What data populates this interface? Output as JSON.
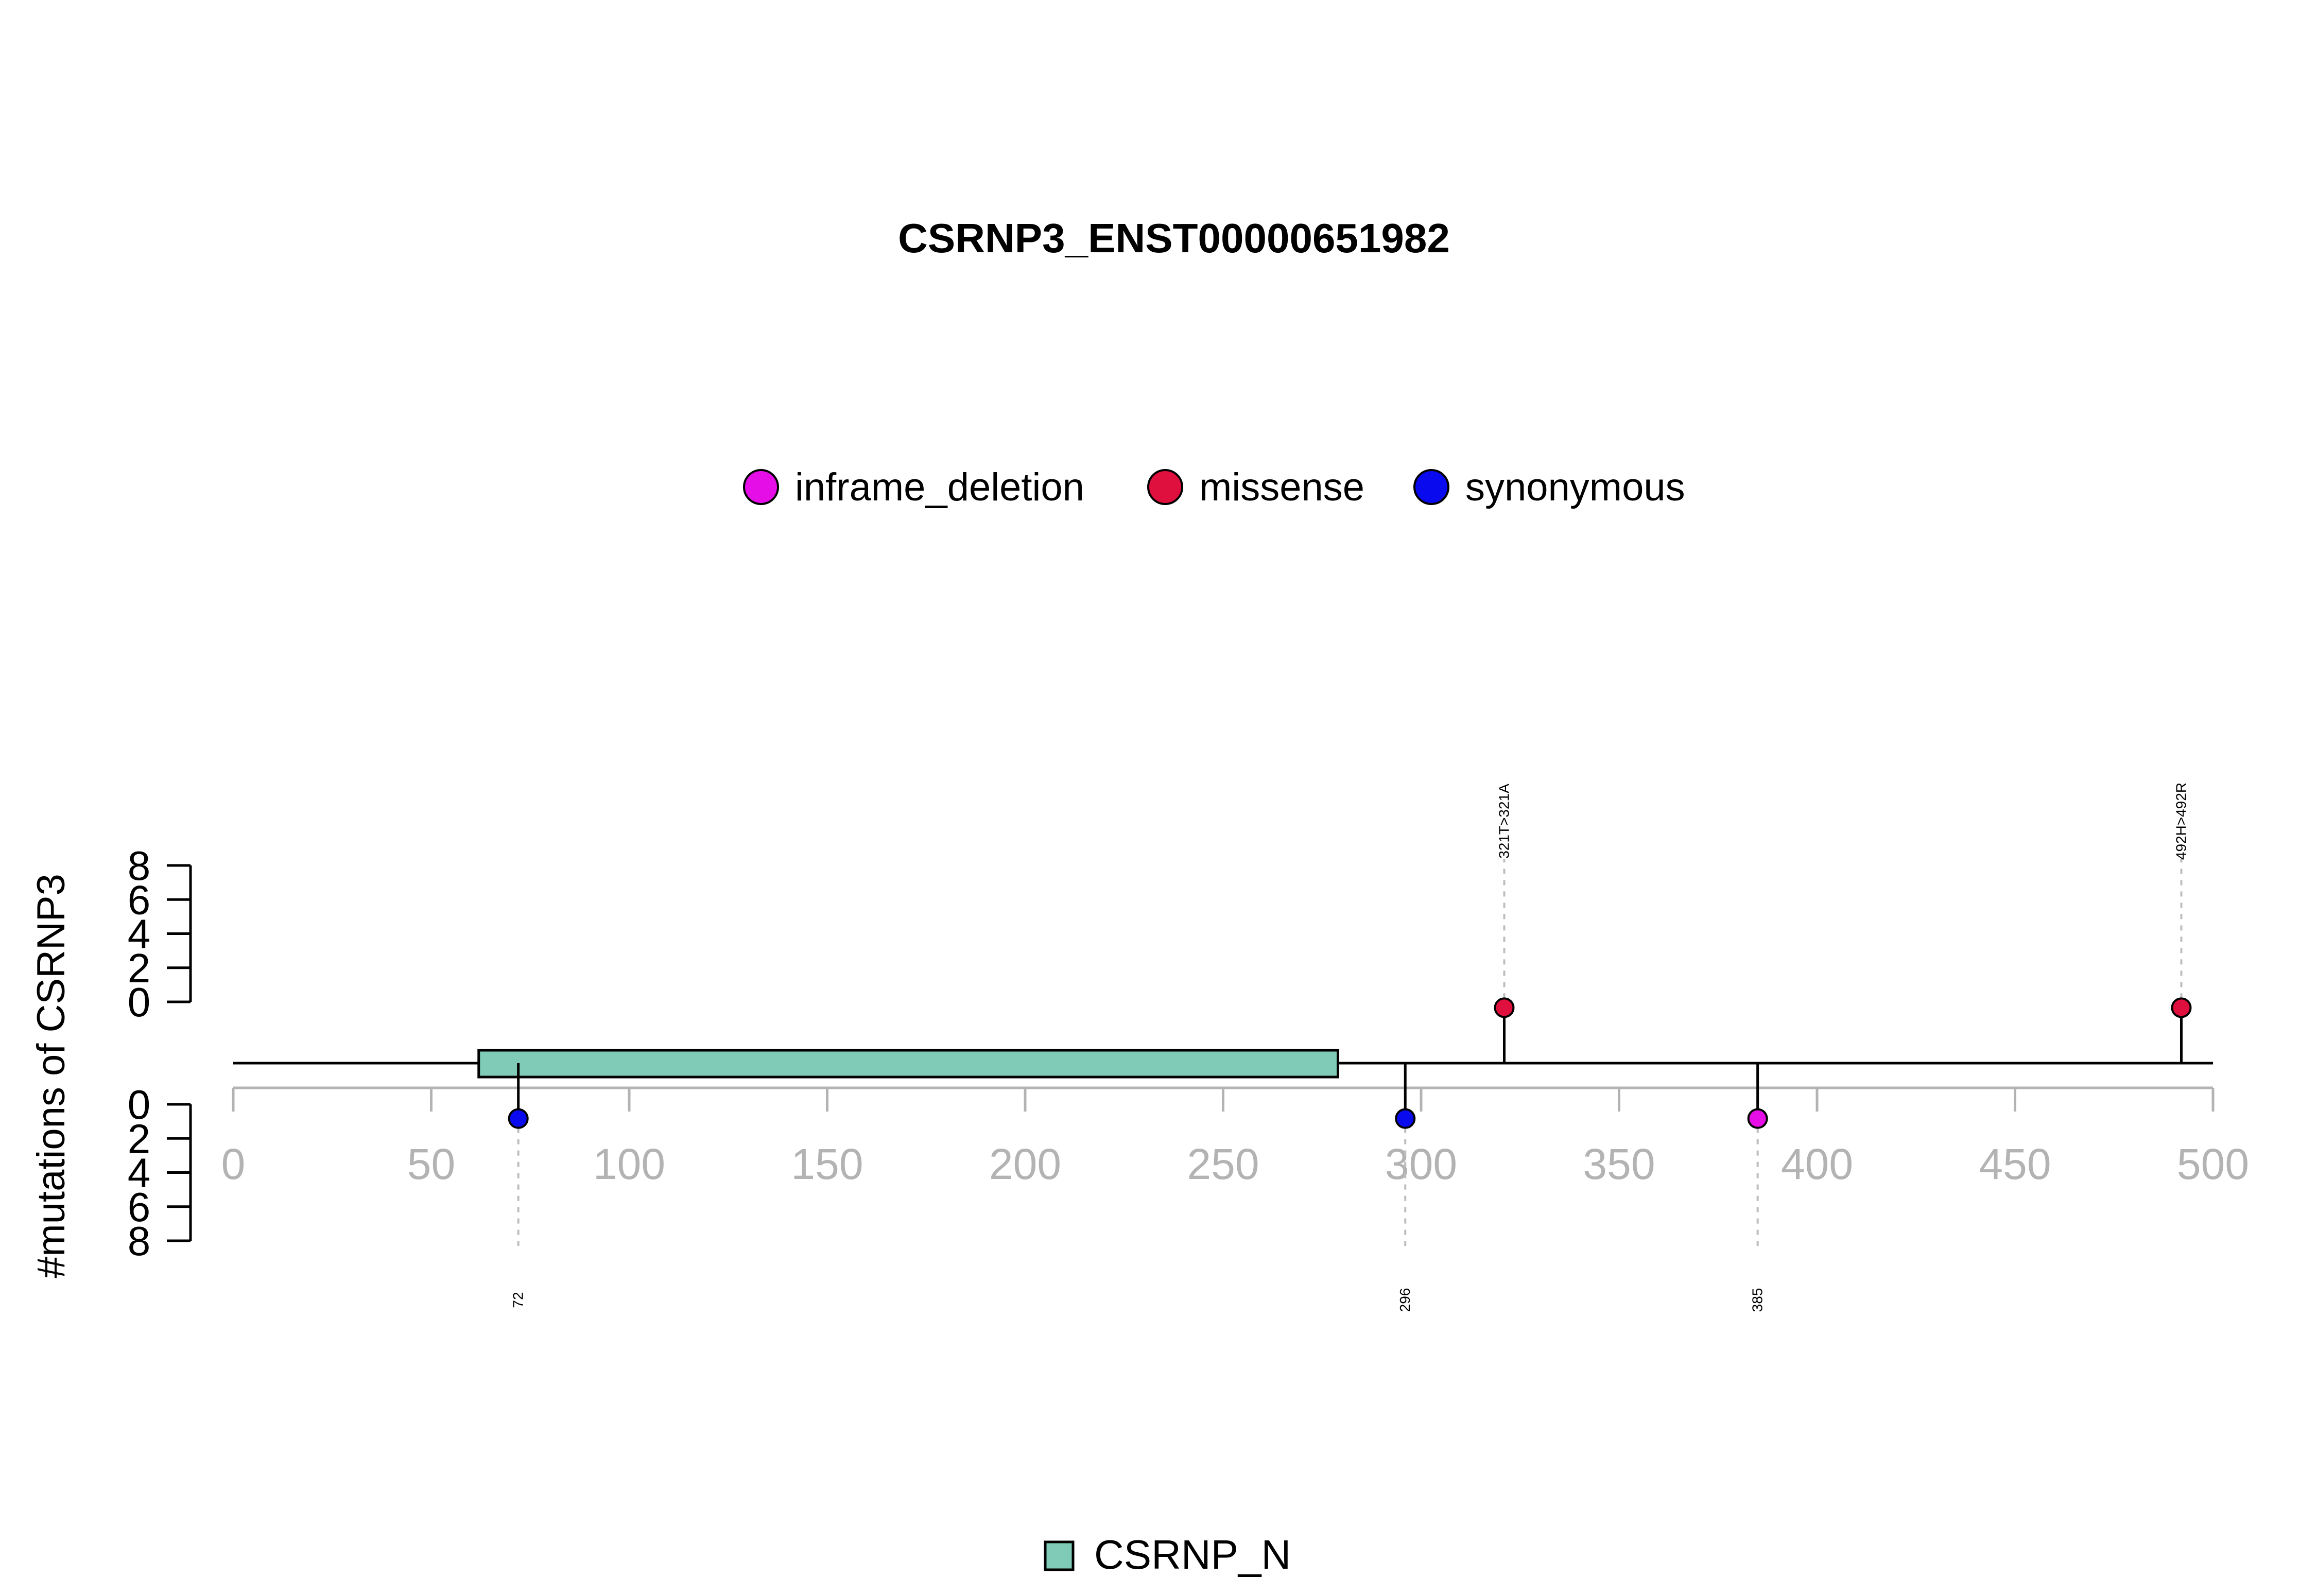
{
  "chart_data": {
    "type": "lollipop",
    "title": "CSRNP3_ENST00000651982",
    "ylabel": "#mutations of CSRNP3",
    "xlim": [
      0,
      500
    ],
    "x_ticks": [
      0,
      50,
      100,
      150,
      200,
      250,
      300,
      350,
      400,
      450,
      500
    ],
    "y_ticks": [
      0,
      2,
      4,
      6,
      8
    ],
    "ylim": [
      0,
      8
    ],
    "protein_length": 500,
    "legend_mutation_types": [
      {
        "label": "inframe_deletion",
        "color": "#e60ee6"
      },
      {
        "label": "missense",
        "color": "#e0103e"
      },
      {
        "label": "synonymous",
        "color": "#0a0aee"
      }
    ],
    "domains": [
      {
        "name": "CSRNP_N",
        "start": 62,
        "end": 279,
        "color": "#7fcbb8"
      }
    ],
    "legend_domains": [
      {
        "label": "CSRNP_N",
        "color": "#7fcbb8"
      }
    ],
    "mutations": [
      {
        "position": 72,
        "label": "72",
        "type": "synonymous",
        "count": 1,
        "side": "bottom"
      },
      {
        "position": 296,
        "label": "296",
        "type": "synonymous",
        "count": 1,
        "side": "bottom"
      },
      {
        "position": 321,
        "label": "321T>321A",
        "type": "missense",
        "count": 1,
        "side": "top"
      },
      {
        "position": 385,
        "label": "385",
        "type": "inframe_deletion",
        "count": 1,
        "side": "bottom"
      },
      {
        "position": 492,
        "label": "492H>492R",
        "type": "missense",
        "count": 1,
        "side": "top"
      }
    ]
  }
}
